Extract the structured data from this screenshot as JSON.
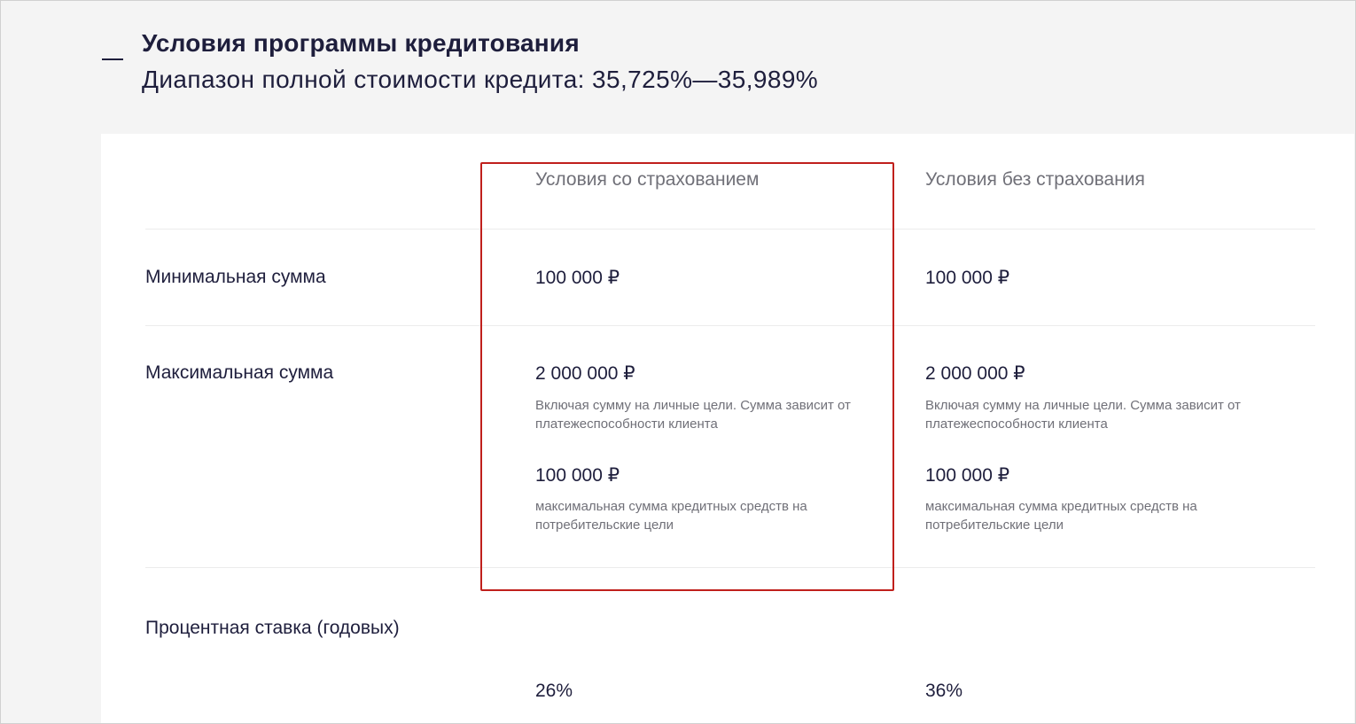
{
  "header": {
    "title": "Условия программы кредитования",
    "subtitle": "Диапазон полной стоимости кредита: 35,725%—35,989%"
  },
  "columns": {
    "with_insurance": "Условия со страхованием",
    "without_insurance": "Условия без страхования"
  },
  "rows": {
    "min_sum": {
      "label": "Минимальная сумма",
      "with_insurance": "100 000 ₽",
      "without_insurance": "100 000 ₽"
    },
    "max_sum": {
      "label": "Максимальная сумма",
      "with_insurance": {
        "amount": "2 000 000 ₽",
        "note": "Включая сумму на личные цели. Сумма зависит от платежеспособности клиента",
        "amount2": "100 000 ₽",
        "note2": "максимальная сумма кредитных средств на потребительские цели"
      },
      "without_insurance": {
        "amount": "2 000 000 ₽",
        "note": "Включая сумму на личные цели. Сумма зависит от платежеспособности клиента",
        "amount2": "100 000 ₽",
        "note2": "максимальная сумма кредитных средств на потребительские цели"
      }
    },
    "rate": {
      "label": "Процентная ставка (годовых)",
      "with_insurance": "26%",
      "without_insurance": "36%"
    }
  },
  "colors": {
    "highlight": "#c0201c",
    "text": "#1e1e3c",
    "muted": "#707078"
  }
}
